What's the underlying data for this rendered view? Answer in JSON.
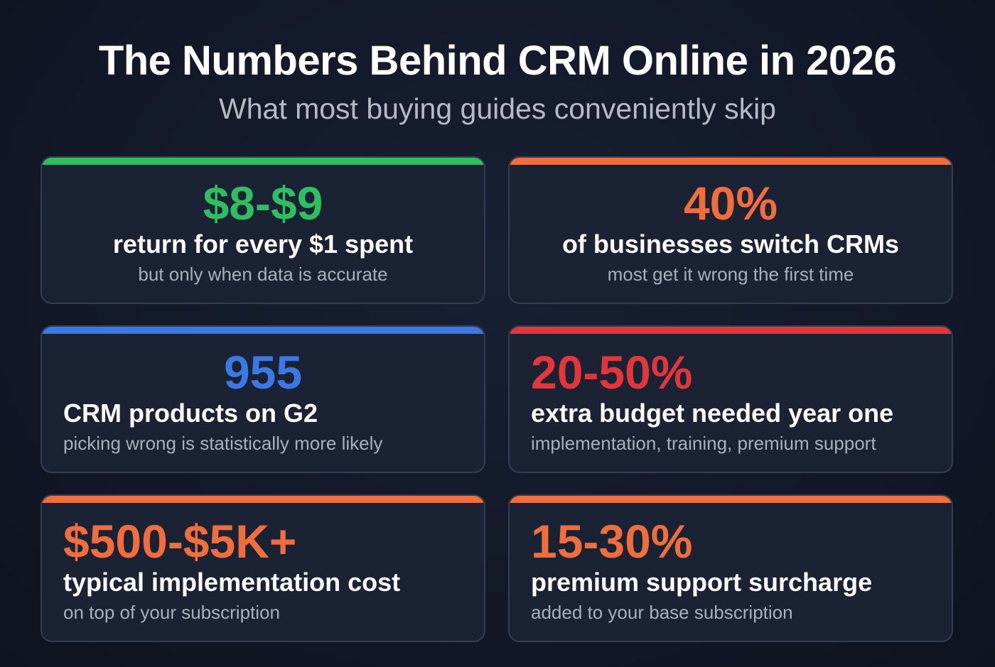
{
  "title": "The Numbers Behind CRM Online in 2026",
  "subtitle": "What most buying guides conveniently skip",
  "colors": {
    "green": "#2fbf62",
    "orange": "#f06d3e",
    "blue": "#3a78e6",
    "red": "#e2363a"
  },
  "cards": [
    {
      "value": "$8-$9",
      "headline": "return for every $1 spent",
      "note": "but only when data is accurate",
      "color": "#2fbf62"
    },
    {
      "value": "40%",
      "headline": "of businesses switch CRMs",
      "note": "most get it wrong the first time",
      "color": "#f06d3e"
    },
    {
      "value": "955",
      "headline": "CRM products on G2",
      "note": "picking wrong is statistically more likely",
      "color": "#3a78e6"
    },
    {
      "value": "20-50%",
      "headline": "extra budget needed year one",
      "note": "implementation, training, premium support",
      "color": "#e2363a"
    },
    {
      "value": "$500-$5K+",
      "headline": "typical implementation cost",
      "note": "on top of your subscription",
      "color": "#f06d3e"
    },
    {
      "value": "15-30%",
      "headline": "premium support surcharge",
      "note": "added to your base subscription",
      "color": "#f06d3e"
    }
  ]
}
